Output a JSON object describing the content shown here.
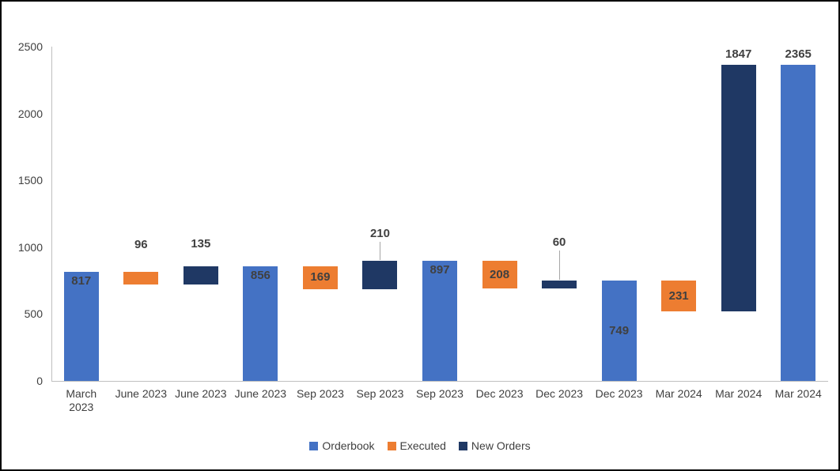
{
  "chart_data": {
    "type": "bar",
    "subtype": "waterfall-orderbook-bridge",
    "title": "",
    "ylim": [
      0,
      2500
    ],
    "yticks": [
      0,
      500,
      1000,
      1500,
      2000,
      2500
    ],
    "grid": false,
    "legend_position": "bottom-center",
    "axis_color": "#bfbfbf",
    "text_color": "#404040",
    "categories": [
      {
        "lines": [
          "March",
          "2023"
        ]
      },
      {
        "lines": [
          "June 2023"
        ]
      },
      {
        "lines": [
          "June 2023"
        ]
      },
      {
        "lines": [
          "June 2023"
        ]
      },
      {
        "lines": [
          "Sep 2023"
        ]
      },
      {
        "lines": [
          "Sep 2023"
        ]
      },
      {
        "lines": [
          "Sep 2023"
        ]
      },
      {
        "lines": [
          "Dec 2023"
        ]
      },
      {
        "lines": [
          "Dec 2023"
        ]
      },
      {
        "lines": [
          "Dec 2023"
        ]
      },
      {
        "lines": [
          "Mar 2024"
        ]
      },
      {
        "lines": [
          "Mar 2024"
        ]
      },
      {
        "lines": [
          "Mar 2024"
        ]
      }
    ],
    "series_colors": {
      "Orderbook": "#4472C4",
      "Executed": "#ED7D31",
      "New Orders": "#1F3864"
    },
    "legend": [
      {
        "label": "Orderbook",
        "color": "#4472C4"
      },
      {
        "label": "Executed",
        "color": "#ED7D31"
      },
      {
        "label": "New Orders",
        "color": "#1F3864"
      }
    ],
    "bars": [
      {
        "category_index": 0,
        "series": "Orderbook",
        "value": 817,
        "base": 0,
        "top": 817,
        "label": "817",
        "label_pos": "inside-top"
      },
      {
        "category_index": 1,
        "series": "Executed",
        "value": 96,
        "base": 721,
        "top": 817,
        "label": "96",
        "label_pos": "above",
        "label_offset": 26
      },
      {
        "category_index": 2,
        "series": "New Orders",
        "value": 135,
        "base": 721,
        "top": 856,
        "label": "135",
        "label_pos": "above",
        "label_offset": 20
      },
      {
        "category_index": 3,
        "series": "Orderbook",
        "value": 856,
        "base": 0,
        "top": 856,
        "label": "856",
        "label_pos": "inside-top"
      },
      {
        "category_index": 4,
        "series": "Executed",
        "value": 169,
        "base": 687,
        "top": 856,
        "label": "169",
        "label_pos": "inside-center"
      },
      {
        "category_index": 5,
        "series": "New Orders",
        "value": 210,
        "base": 687,
        "top": 897,
        "label": "210",
        "label_pos": "callout",
        "label_offset": 26
      },
      {
        "category_index": 6,
        "series": "Orderbook",
        "value": 897,
        "base": 0,
        "top": 897,
        "label": "897",
        "label_pos": "inside-top"
      },
      {
        "category_index": 7,
        "series": "Executed",
        "value": 208,
        "base": 689,
        "top": 897,
        "label": "208",
        "label_pos": "inside-center"
      },
      {
        "category_index": 8,
        "series": "New Orders",
        "value": 60,
        "base": 689,
        "top": 749,
        "label": "60",
        "label_pos": "callout",
        "label_offset": 40
      },
      {
        "category_index": 9,
        "series": "Orderbook",
        "value": 749,
        "base": 0,
        "top": 749,
        "label": "749",
        "label_pos": "inside-center"
      },
      {
        "category_index": 10,
        "series": "Executed",
        "value": 231,
        "base": 518,
        "top": 749,
        "label": "231",
        "label_pos": "inside-center"
      },
      {
        "category_index": 11,
        "series": "New Orders",
        "value": 1847,
        "base": 518,
        "top": 2365,
        "label": "1847",
        "label_pos": "above",
        "label_offset": 5
      },
      {
        "category_index": 12,
        "series": "Orderbook",
        "value": 2365,
        "base": 0,
        "top": 2365,
        "label": "2365",
        "label_pos": "above",
        "label_offset": 5
      }
    ]
  }
}
